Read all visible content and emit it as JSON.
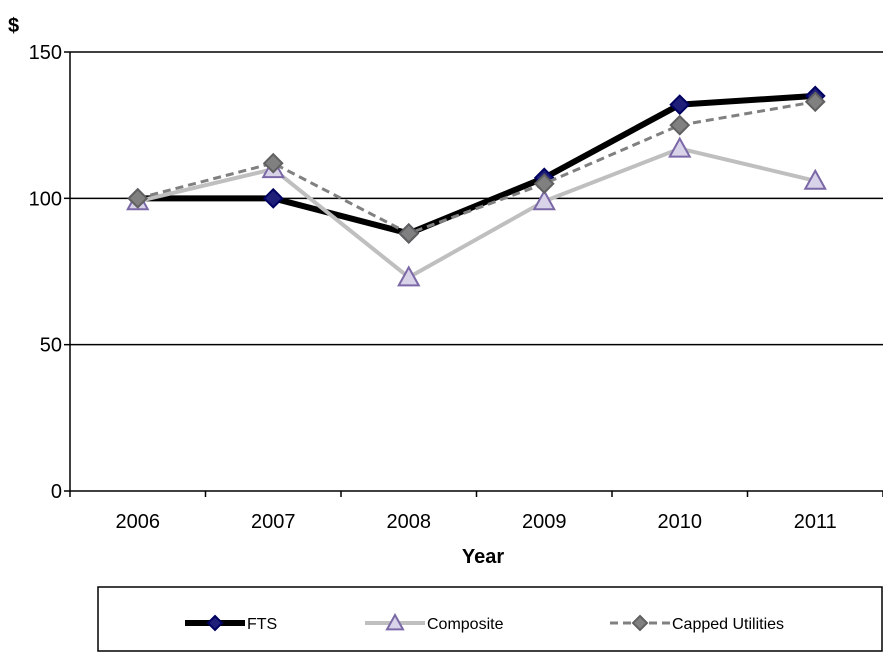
{
  "chart_data": {
    "type": "line",
    "xlabel": "Year",
    "ylabel": "$",
    "ylim": [
      0,
      150
    ],
    "yticks": [
      0,
      50,
      100,
      150
    ],
    "grid": "horizontal",
    "legend_position": "bottom",
    "categories": [
      "2006",
      "2007",
      "2008",
      "2009",
      "2010",
      "2011"
    ],
    "series": [
      {
        "name": "FTS",
        "values": [
          100,
          100,
          88,
          107,
          132,
          135
        ],
        "color": "#000000",
        "marker": "diamond",
        "marker_color": "#1f1f7a",
        "line_style": "solid"
      },
      {
        "name": "Composite",
        "values": [
          99,
          110,
          73,
          99,
          117,
          106
        ],
        "color": "#bfbfbf",
        "marker": "triangle",
        "marker_color": "#7b68a6",
        "line_style": "solid"
      },
      {
        "name": "Capped Utilities",
        "values": [
          100,
          112,
          88,
          105,
          125,
          133
        ],
        "color": "#808080",
        "marker": "diamond",
        "marker_color": "#808080",
        "line_style": "dashed"
      }
    ]
  }
}
